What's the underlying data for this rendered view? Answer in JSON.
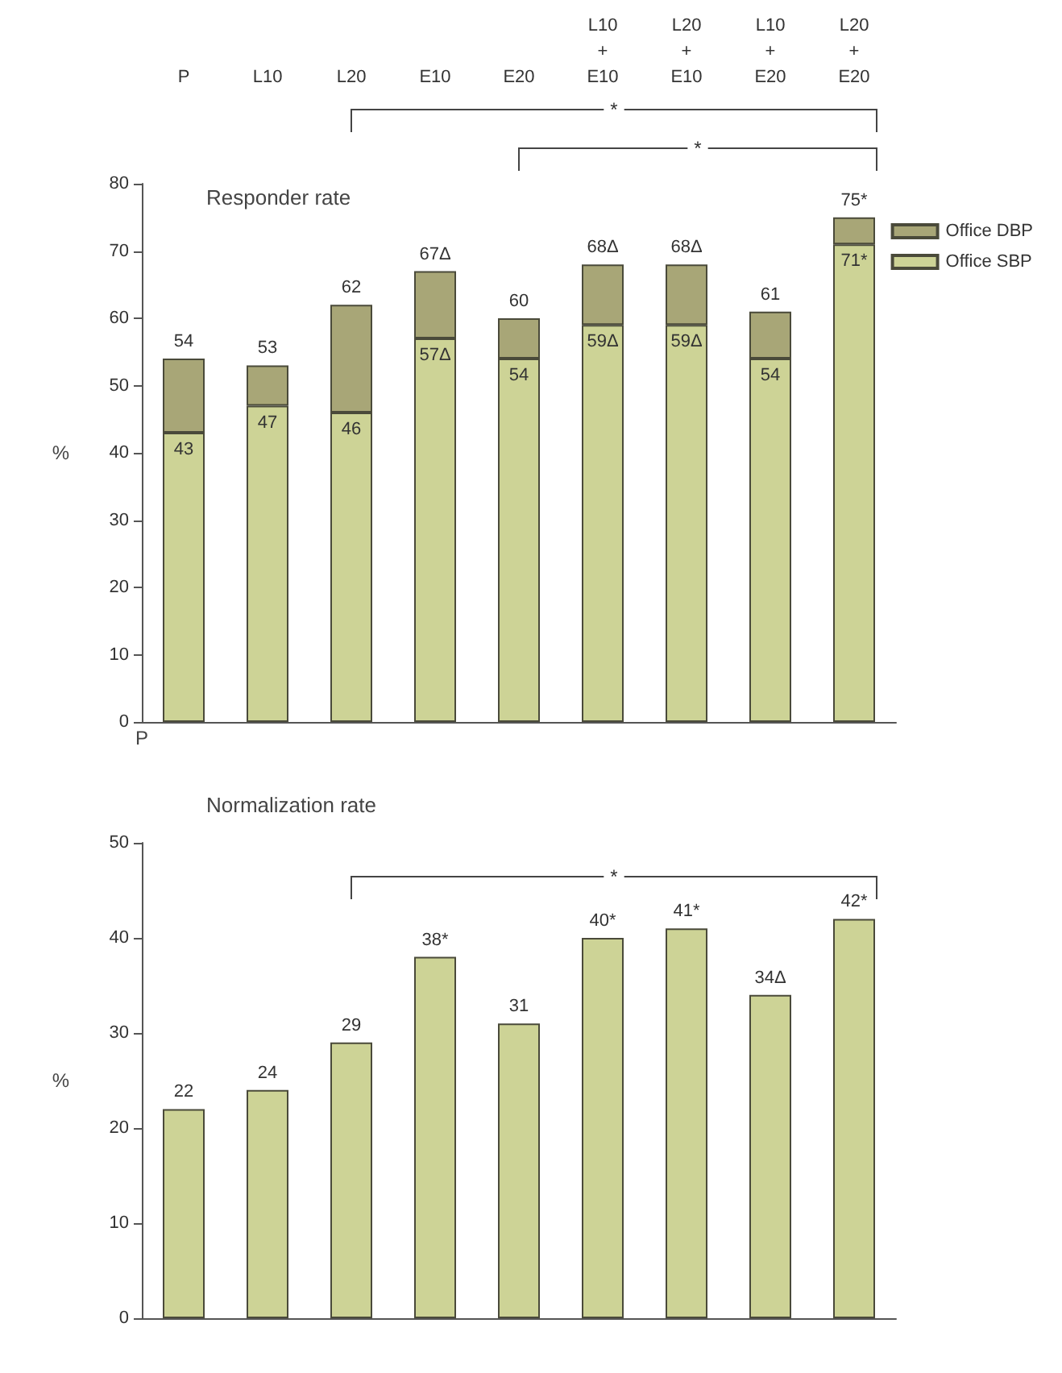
{
  "chart_data": [
    {
      "type": "bar",
      "title": "Responder rate",
      "ylabel": "%",
      "categories": [
        "P",
        "L10",
        "L20",
        "E10",
        "E20",
        "L10\n+\nE10",
        "L20\n+\nE10",
        "L10\n+\nE20",
        "L20\n+\nE20"
      ],
      "stacked": true,
      "series": [
        {
          "name": "Office SBP",
          "color": "#cdd396",
          "values": [
            43,
            47,
            46,
            57,
            54,
            59,
            59,
            54,
            71
          ],
          "value_labels": [
            "43",
            "47",
            "46",
            "57Δ",
            "54",
            "59Δ",
            "59Δ",
            "54",
            "71*"
          ]
        },
        {
          "name": "Office DBP",
          "color": "#a8a677",
          "values": [
            11,
            6,
            16,
            10,
            6,
            9,
            9,
            7,
            4
          ]
        }
      ],
      "totals": [
        "54",
        "53",
        "62",
        "67Δ",
        "60",
        "68Δ",
        "68Δ",
        "61",
        "75*"
      ],
      "ylim": [
        0,
        80
      ],
      "yticks": [
        0,
        10,
        20,
        30,
        40,
        50,
        60,
        70,
        80
      ],
      "legend": "right",
      "grid": false,
      "annotations": [
        "*",
        "*",
        "P"
      ]
    },
    {
      "type": "bar",
      "title": "Normalization rate",
      "ylabel": "%",
      "categories": [
        null,
        null,
        null,
        null,
        null,
        null,
        null,
        null,
        null
      ],
      "series": [
        {
          "color": "#cdd396",
          "values": [
            22,
            24,
            29,
            38,
            31,
            40,
            41,
            34,
            42
          ],
          "value_labels": [
            "22",
            "24",
            "29",
            "38*",
            "31",
            "40*",
            "41*",
            "34Δ",
            "42*"
          ]
        }
      ],
      "ylim": [
        0,
        50
      ],
      "yticks": [
        0,
        10,
        20,
        30,
        40,
        50
      ],
      "tick_labels": "y",
      "grid": false,
      "annotations": [
        "*"
      ]
    }
  ]
}
